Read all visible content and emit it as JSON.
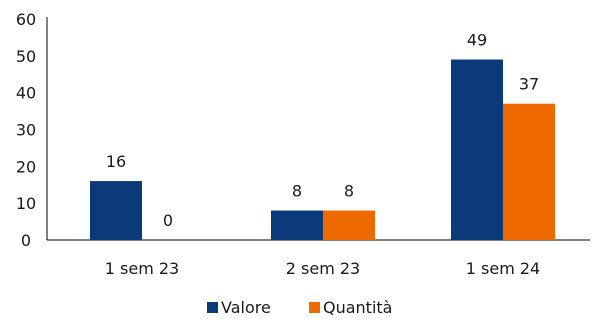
{
  "chart_data": {
    "type": "bar",
    "categories": [
      "1 sem 23",
      "2 sem 23",
      "1 sem 24"
    ],
    "series": [
      {
        "name": "Valore",
        "values": [
          16,
          8,
          49
        ],
        "color": "#0b3a7a"
      },
      {
        "name": "Quantità",
        "values": [
          0,
          8,
          37
        ],
        "color": "#ee6a00"
      }
    ],
    "data_labels": [
      [
        "16",
        "8",
        "49"
      ],
      [
        "0",
        "8",
        "37"
      ]
    ],
    "y_ticks": [
      "0",
      "10",
      "20",
      "30",
      "40",
      "50",
      "60"
    ],
    "ylim": [
      0,
      60
    ],
    "grid": false,
    "legend_position": "bottom"
  }
}
